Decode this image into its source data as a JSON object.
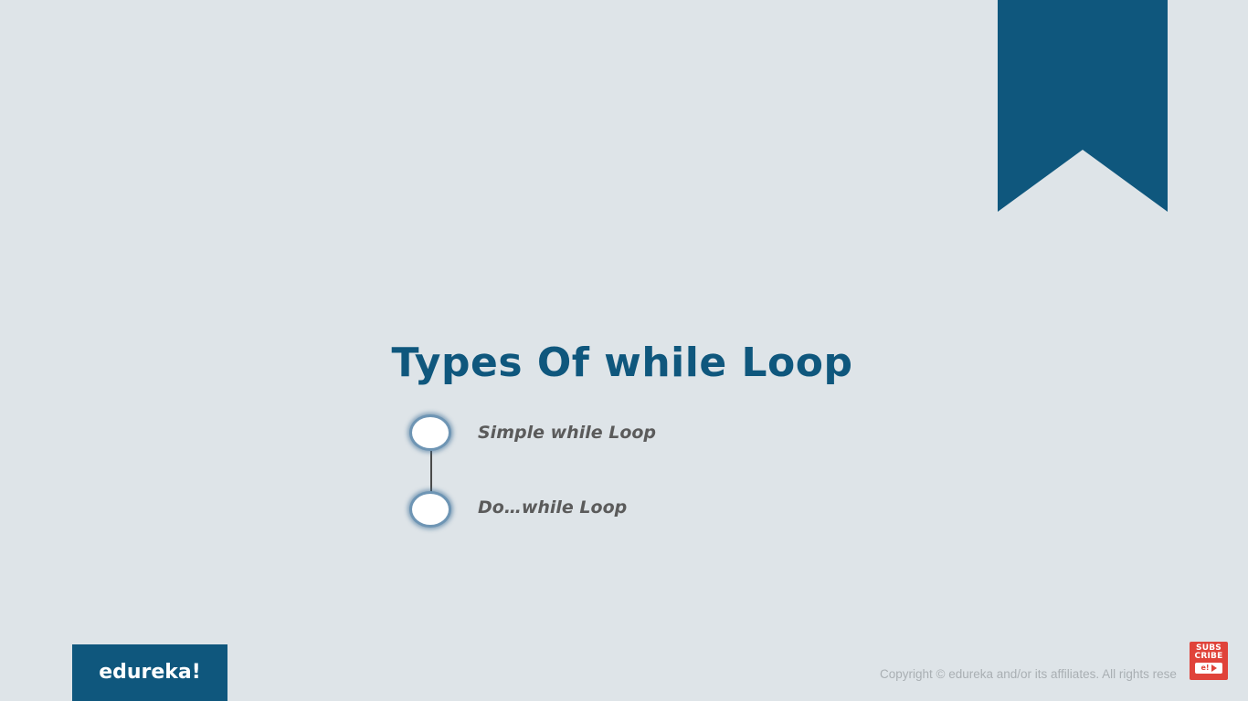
{
  "slide": {
    "title": "Types Of while Loop",
    "items": [
      {
        "label": "Simple while Loop"
      },
      {
        "label": "Do…while Loop"
      }
    ]
  },
  "footer": {
    "logo": "edureka!",
    "copyright": "Copyright © edureka and/or its affiliates. All rights rese"
  },
  "subscribe": {
    "line1": "SUBS",
    "line2": "CRIBE",
    "badge": "e!"
  },
  "colors": {
    "background": "#dee4e8",
    "accent": "#0f577d",
    "item_text": "#5b5b5b",
    "node_border": "#6e95b4",
    "subscribe": "#e0433a"
  },
  "icons": {
    "bookmark": "bookmark-ribbon-icon",
    "timeline_node": "circle-node-icon",
    "subscribe_play": "play-icon"
  }
}
